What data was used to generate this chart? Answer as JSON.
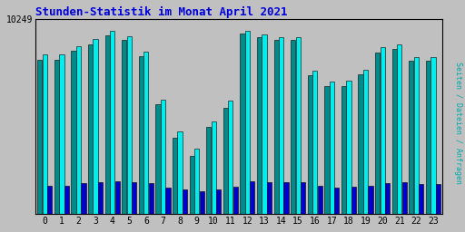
{
  "title": "Stunden-Statistik im Monat April 2021",
  "title_color": "#0000DD",
  "bg_color": "#C0C0C0",
  "plot_bg_color": "#C0C0C0",
  "bar_colors": [
    "#008B8B",
    "#00EEEE",
    "#0000CD"
  ],
  "bar_width": 0.28,
  "hours": [
    0,
    1,
    2,
    3,
    4,
    5,
    6,
    7,
    8,
    9,
    10,
    11,
    12,
    13,
    14,
    15,
    16,
    17,
    18,
    19,
    20,
    21,
    22,
    23
  ],
  "series_teal": [
    870,
    870,
    920,
    960,
    1010,
    985,
    890,
    620,
    430,
    330,
    490,
    600,
    1020,
    1000,
    985,
    985,
    785,
    720,
    725,
    790,
    910,
    930,
    865,
    865
  ],
  "series_cyan": [
    900,
    900,
    950,
    990,
    1035,
    1005,
    915,
    645,
    465,
    370,
    525,
    640,
    1035,
    1015,
    1000,
    1000,
    810,
    750,
    755,
    815,
    940,
    960,
    885,
    885
  ],
  "series_blue": [
    160,
    160,
    175,
    180,
    185,
    182,
    175,
    150,
    138,
    130,
    142,
    155,
    185,
    182,
    178,
    178,
    160,
    152,
    153,
    162,
    175,
    180,
    168,
    168
  ],
  "ylabel_val": "10249",
  "ymin": 0,
  "ymax": 1100,
  "grid_color": "#999999",
  "right_label": "Seiten / Dateien / Anfragen",
  "right_label_color": "#00AAAA",
  "tick_fontsize": 7,
  "title_fontsize": 9,
  "font_family": "monospace",
  "border_color": "#000000"
}
